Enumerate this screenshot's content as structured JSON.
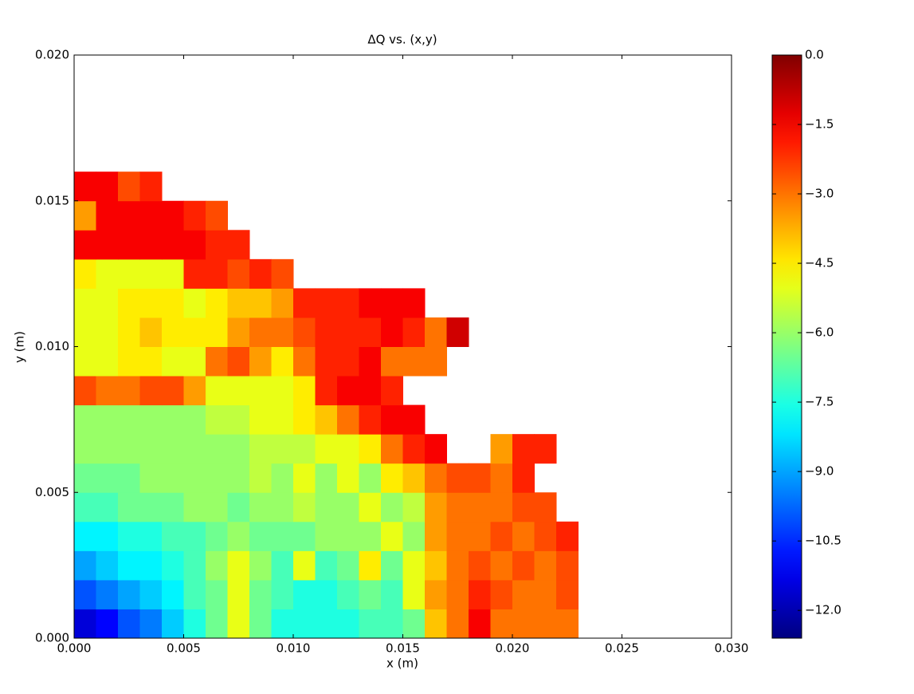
{
  "chart_data": {
    "type": "heatmap",
    "title": "ΔQ vs. (x,y)",
    "x_label": "x (m)",
    "y_label": "y (m)",
    "x": [
      0.0005,
      0.0015,
      0.0025,
      0.0035,
      0.0045,
      0.0055,
      0.0065,
      0.0075,
      0.0085,
      0.0095,
      0.0105,
      0.0115,
      0.0125,
      0.0135,
      0.0145,
      0.0155,
      0.0165,
      0.0175,
      0.0185,
      0.0195,
      0.0205,
      0.0215,
      0.0225
    ],
    "y": [
      0.0005,
      0.0015,
      0.0025,
      0.0035,
      0.0045,
      0.0055,
      0.0065,
      0.0075,
      0.0085,
      0.0095,
      0.0105,
      0.0115,
      0.0125,
      0.0135,
      0.0145,
      0.0155
    ],
    "z": [
      [
        -11.5,
        -11,
        -10,
        -9.5,
        -8.5,
        -7.5,
        -6.5,
        -5,
        -6.5,
        -7.5,
        -7.5,
        -7.5,
        -7.5,
        -7,
        -7,
        -6.5,
        -4,
        -3,
        -1.5,
        -3,
        -3,
        -3,
        -3
      ],
      [
        -10,
        -9.5,
        -9,
        -8.5,
        -8,
        -7,
        -6.5,
        -5,
        -6.5,
        -7,
        -7.5,
        -7.5,
        -7,
        -6.5,
        -7,
        -5,
        -3.5,
        -3,
        -2,
        -2.5,
        -3,
        -3,
        -2.5
      ],
      [
        -9,
        -8.5,
        -8,
        -8,
        -7.5,
        -7,
        -6,
        -5,
        -6,
        -7,
        -5,
        -7,
        -6.5,
        -4.5,
        -6.5,
        -5,
        -4,
        -3,
        -2.5,
        -3,
        -2.5,
        -3,
        -2.5
      ],
      [
        -8,
        -8,
        -7.5,
        -7.5,
        -7,
        -7,
        -6.5,
        -6,
        -6.5,
        -6.5,
        -6.5,
        -6,
        -6,
        -6,
        -5,
        -6,
        -3.5,
        -3,
        -3,
        -2.5,
        -3,
        -2.5,
        -2
      ],
      [
        -7,
        -7,
        -6.5,
        -6.5,
        -6.5,
        -6,
        -6,
        -6.5,
        -6,
        -6,
        -5.5,
        -6,
        -6,
        -5,
        -6,
        -5.5,
        -3.5,
        -3,
        -3,
        -3,
        -2.5,
        -2.5,
        null
      ],
      [
        -6.5,
        -6.5,
        -6.5,
        -6,
        -6,
        -6,
        -6,
        -6,
        -5.5,
        -6,
        -5,
        -6,
        -5,
        -6,
        -4.5,
        -4,
        -3,
        -2.5,
        -2.5,
        -3,
        -2,
        null,
        null
      ],
      [
        -6,
        -6,
        -6,
        -6,
        -6,
        -6,
        -6,
        -6,
        -5.5,
        -5.5,
        -5.5,
        -5,
        -5,
        -4.5,
        -3,
        -2,
        -1.5,
        null,
        null,
        -3.5,
        -2,
        -2,
        null
      ],
      [
        -6,
        -6,
        -6,
        -6,
        -6,
        -6,
        -5.5,
        -5.5,
        -5,
        -5,
        -4.5,
        -4,
        -3,
        -2,
        -1.5,
        -1.5,
        null,
        null,
        null,
        null,
        null,
        null,
        null
      ],
      [
        -2.5,
        -3,
        -3,
        -2.5,
        -2.5,
        -3.5,
        -5,
        -5,
        -5,
        -5,
        -4.5,
        -2,
        -1.5,
        -1.5,
        -2,
        null,
        null,
        null,
        null,
        null,
        null,
        null,
        null
      ],
      [
        -5,
        -5,
        -4.5,
        -4.5,
        -5,
        -5,
        -3,
        -2.5,
        -3.5,
        -4.5,
        -3,
        -2,
        -2,
        -1.5,
        -3,
        -3,
        -3,
        null,
        null,
        null,
        null,
        null,
        null
      ],
      [
        -5,
        -5,
        -4.5,
        -4,
        -4.5,
        -4.5,
        -4.5,
        -3.5,
        -3,
        -3,
        -2.5,
        -2,
        -2,
        -2,
        -1.5,
        -2,
        -3,
        -1,
        null,
        null,
        null,
        null,
        null
      ],
      [
        -5,
        -5,
        -4.5,
        -4.5,
        -4.5,
        -5,
        -4.5,
        -4,
        -4,
        -3.5,
        -2,
        -2,
        -2,
        -1.5,
        -1.5,
        -1.5,
        null,
        null,
        null,
        null,
        null,
        null,
        null
      ],
      [
        -4.5,
        -5,
        -5,
        -5,
        -5,
        -2,
        -2,
        -2.5,
        -2,
        -2.5,
        null,
        null,
        null,
        null,
        null,
        null,
        null,
        null,
        null,
        null,
        null,
        null,
        null
      ],
      [
        -1.5,
        -1.5,
        -1.5,
        -1.5,
        -1.5,
        -1.5,
        -2,
        -2,
        null,
        null,
        null,
        null,
        null,
        null,
        null,
        null,
        null,
        null,
        null,
        null,
        null,
        null,
        null
      ],
      [
        -3.5,
        -1.5,
        -1.5,
        -1.5,
        -1.5,
        -2,
        -2.5,
        null,
        null,
        null,
        null,
        null,
        null,
        null,
        null,
        null,
        null,
        null,
        null,
        null,
        null,
        null,
        null
      ],
      [
        -1.5,
        -1.5,
        -2.5,
        -2,
        null,
        null,
        null,
        null,
        null,
        null,
        null,
        null,
        null,
        null,
        null,
        null,
        null,
        null,
        null,
        null,
        null,
        null,
        null
      ]
    ],
    "colormap": "jet",
    "clim": [
      -12.6,
      0
    ],
    "xlim": [
      0,
      0.03
    ],
    "ylim": [
      0,
      0.02
    ],
    "xticks": [
      {
        "value": 0,
        "label": "0.000"
      },
      {
        "value": 0.005,
        "label": "0.005"
      },
      {
        "value": 0.01,
        "label": "0.010"
      },
      {
        "value": 0.015,
        "label": "0.015"
      },
      {
        "value": 0.02,
        "label": "0.020"
      },
      {
        "value": 0.025,
        "label": "0.025"
      },
      {
        "value": 0.03,
        "label": "0.030"
      }
    ],
    "yticks": [
      {
        "value": 0,
        "label": "0.000"
      },
      {
        "value": 0.005,
        "label": "0.005"
      },
      {
        "value": 0.01,
        "label": "0.010"
      },
      {
        "value": 0.015,
        "label": "0.015"
      },
      {
        "value": 0.02,
        "label": "0.020"
      }
    ],
    "cticks": [
      {
        "value": 0,
        "label": "0.0"
      },
      {
        "value": -1.5,
        "label": "−1.5"
      },
      {
        "value": -3,
        "label": "−3.0"
      },
      {
        "value": -4.5,
        "label": "−4.5"
      },
      {
        "value": -6,
        "label": "−6.0"
      },
      {
        "value": -7.5,
        "label": "−7.5"
      },
      {
        "value": -9,
        "label": "−9.0"
      },
      {
        "value": -10.5,
        "label": "−10.5"
      },
      {
        "value": -12,
        "label": "−12.0"
      }
    ]
  }
}
